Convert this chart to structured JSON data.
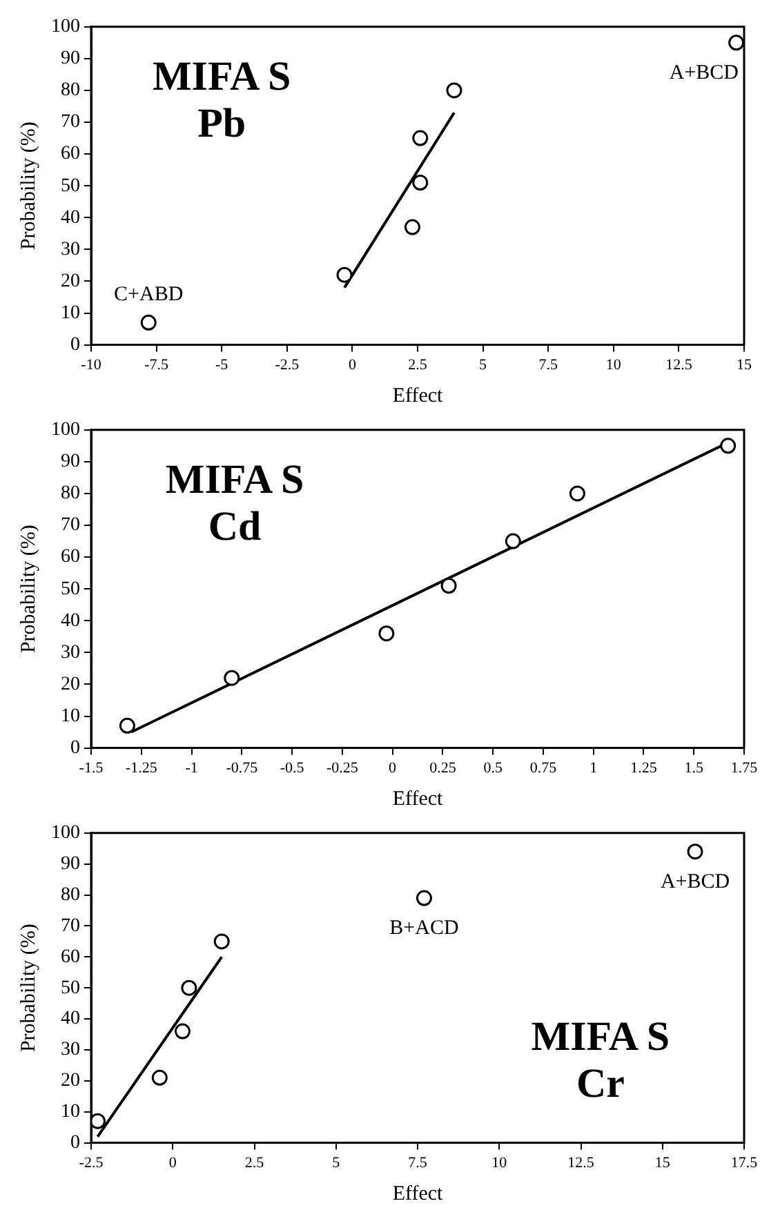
{
  "chart_data": [
    {
      "type": "scatter",
      "title": "MIFA S",
      "subtitle": "Pb",
      "xlabel": "Effect",
      "ylabel": "Probability (%)",
      "xlim": [
        -10,
        15
      ],
      "xticks": [
        -10,
        -7.5,
        -5,
        -2.5,
        0,
        2.5,
        5,
        7.5,
        10,
        12.5,
        15
      ],
      "ylim": [
        0,
        100
      ],
      "yticks": [
        0,
        10,
        20,
        30,
        40,
        50,
        60,
        70,
        80,
        90,
        100
      ],
      "grid": false,
      "legend": false,
      "marker": "circle",
      "series": [
        {
          "color": "#000000",
          "x": [
            -7.8,
            -0.3,
            2.3,
            2.6,
            2.6,
            3.9,
            14.7
          ],
          "values": [
            7,
            22,
            37,
            51,
            65,
            80,
            95
          ]
        },
        {
          "type": "line",
          "color": "#000000",
          "marker": "none",
          "line_style": "solid",
          "x": [
            -0.3,
            3.9
          ],
          "values": [
            18,
            73
          ]
        }
      ],
      "annotations": [
        {
          "text": "C+ABD",
          "x": -7.8,
          "y": 7
        },
        {
          "text": "A+BCD",
          "x": 14.7,
          "y": 95
        }
      ]
    },
    {
      "type": "scatter",
      "title": "MIFA S",
      "subtitle": "Cd",
      "xlabel": "Effect",
      "ylabel": "Probability (%)",
      "xlim": [
        -1.5,
        1.75
      ],
      "xticks": [
        -1.5,
        -1.25,
        -1,
        -0.75,
        -0.5,
        -0.25,
        0,
        0.25,
        0.5,
        0.75,
        1,
        1.25,
        1.5,
        1.75
      ],
      "ylim": [
        0,
        100
      ],
      "yticks": [
        0,
        10,
        20,
        30,
        40,
        50,
        60,
        70,
        80,
        90,
        100
      ],
      "grid": false,
      "legend": false,
      "marker": "circle",
      "series": [
        {
          "color": "#000000",
          "x": [
            -1.32,
            -0.8,
            -0.03,
            0.28,
            0.6,
            0.92,
            1.67
          ],
          "values": [
            7,
            22,
            36,
            51,
            65,
            80,
            95
          ]
        },
        {
          "type": "line",
          "color": "#000000",
          "marker": "none",
          "line_style": "solid",
          "x": [
            -1.3,
            1.67
          ],
          "values": [
            5,
            96
          ]
        }
      ]
    },
    {
      "type": "scatter",
      "title": "MIFA S",
      "subtitle": "Cr",
      "xlabel": "Effect",
      "ylabel": "Probability (%)",
      "xlim": [
        -2.5,
        17.5
      ],
      "xticks": [
        -2.5,
        0,
        2.5,
        5,
        7.5,
        10,
        12.5,
        15,
        17.5
      ],
      "ylim": [
        0,
        100
      ],
      "yticks": [
        0,
        10,
        20,
        30,
        40,
        50,
        60,
        70,
        80,
        90,
        100
      ],
      "grid": false,
      "legend": false,
      "marker": "circle",
      "series": [
        {
          "color": "#000000",
          "x": [
            -2.3,
            -0.4,
            0.3,
            0.5,
            1.5,
            7.7,
            16
          ],
          "values": [
            7,
            21,
            36,
            50,
            65,
            79,
            94
          ]
        },
        {
          "type": "line",
          "color": "#000000",
          "marker": "none",
          "line_style": "solid",
          "x": [
            -2.3,
            1.5
          ],
          "values": [
            2,
            60
          ]
        }
      ],
      "annotations": [
        {
          "text": "B+ACD",
          "x": 7.7,
          "y": 79
        },
        {
          "text": "A+BCD",
          "x": 16,
          "y": 94
        }
      ]
    }
  ]
}
